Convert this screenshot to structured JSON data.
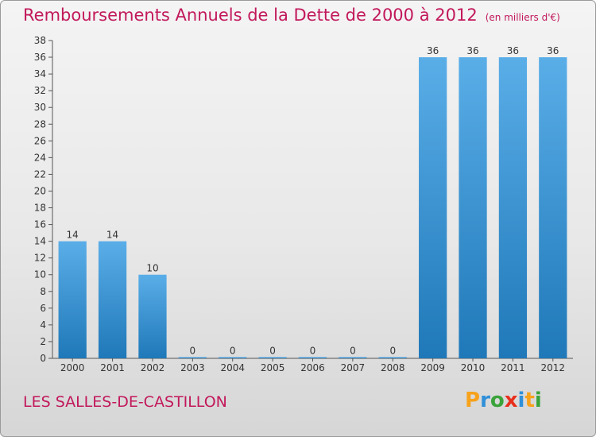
{
  "title": "Remboursements Annuels de la Dette de 2000 à 2012",
  "unit": "(en milliers d'€)",
  "commune": "LES SALLES-DE-CASTILLON",
  "logo": {
    "letters": [
      "P",
      "r",
      "o",
      "x",
      "i",
      "t",
      "i"
    ],
    "colors": [
      "#f7a21b",
      "#2f8fd9",
      "#3aa33a",
      "#e8301c",
      "#2f8fd9",
      "#f7a21b",
      "#3aa33a"
    ]
  },
  "colors": {
    "accent": "#c2185b",
    "bar_top": "#5aaee8",
    "bar_bottom": "#1f78b8"
  },
  "chart_data": {
    "type": "bar",
    "categories": [
      "2000",
      "2001",
      "2002",
      "2003",
      "2004",
      "2005",
      "2006",
      "2007",
      "2008",
      "2009",
      "2010",
      "2011",
      "2012"
    ],
    "values": [
      14,
      14,
      10,
      0,
      0,
      0,
      0,
      0,
      0,
      36,
      36,
      36,
      36
    ],
    "data_labels": [
      "14",
      "14",
      "10",
      "0",
      "0",
      "0",
      "0",
      "0",
      "0",
      "36",
      "36",
      "36",
      "36"
    ],
    "title": "Remboursements Annuels de la Dette de 2000 à 2012",
    "xlabel": "",
    "ylabel": "",
    "ylim": [
      0,
      38
    ],
    "yticks": [
      0,
      2,
      4,
      6,
      8,
      10,
      12,
      14,
      16,
      18,
      20,
      22,
      24,
      26,
      28,
      30,
      32,
      34,
      36,
      38
    ],
    "grid": false,
    "legend": "none"
  }
}
